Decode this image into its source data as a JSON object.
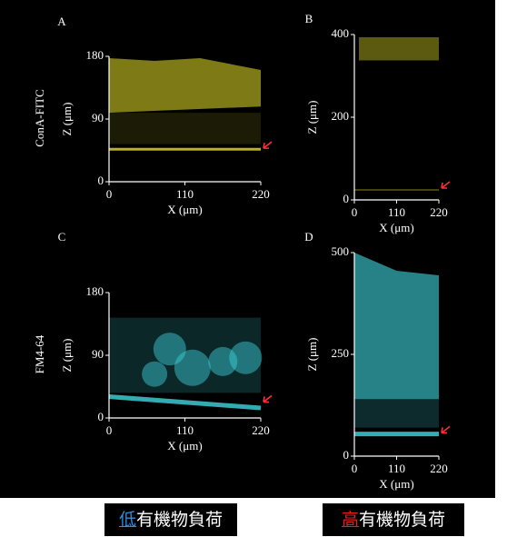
{
  "chart_data": [
    {
      "type": "image",
      "panel": "A",
      "row_label": "ConA-FITC",
      "xlabel": "X (μm)",
      "ylabel": "Z (μm)",
      "xlim": [
        0,
        220
      ],
      "ylim": [
        0,
        180
      ],
      "xticks": [
        0,
        110,
        220
      ],
      "yticks": [
        0,
        90,
        180
      ],
      "color": "#e6e028"
    },
    {
      "type": "image",
      "panel": "B",
      "xlabel": "X (μm)",
      "ylabel": "Z (μm)",
      "xlim": [
        0,
        220
      ],
      "ylim": [
        0,
        400
      ],
      "xticks": [
        0,
        110,
        220
      ],
      "yticks": [
        0,
        200,
        400
      ],
      "color": "#e6e028"
    },
    {
      "type": "image",
      "panel": "C",
      "row_label": "FM4-64",
      "xlabel": "X (μm)",
      "ylabel": "Z (μm)",
      "xlim": [
        0,
        220
      ],
      "ylim": [
        0,
        180
      ],
      "xticks": [
        0,
        110,
        220
      ],
      "yticks": [
        0,
        90,
        180
      ],
      "color": "#3fd8e0"
    },
    {
      "type": "image",
      "panel": "D",
      "xlabel": "X (μm)",
      "ylabel": "Z (μm)",
      "xlim": [
        0,
        220
      ],
      "ylim": [
        0,
        500
      ],
      "xticks": [
        0,
        110,
        220
      ],
      "yticks": [
        0,
        250,
        500
      ],
      "color": "#3fd8e0"
    }
  ],
  "captions": [
    {
      "highlight": "低",
      "text": "有機物負荷"
    },
    {
      "highlight": "高",
      "text": "有機物負荷"
    }
  ]
}
